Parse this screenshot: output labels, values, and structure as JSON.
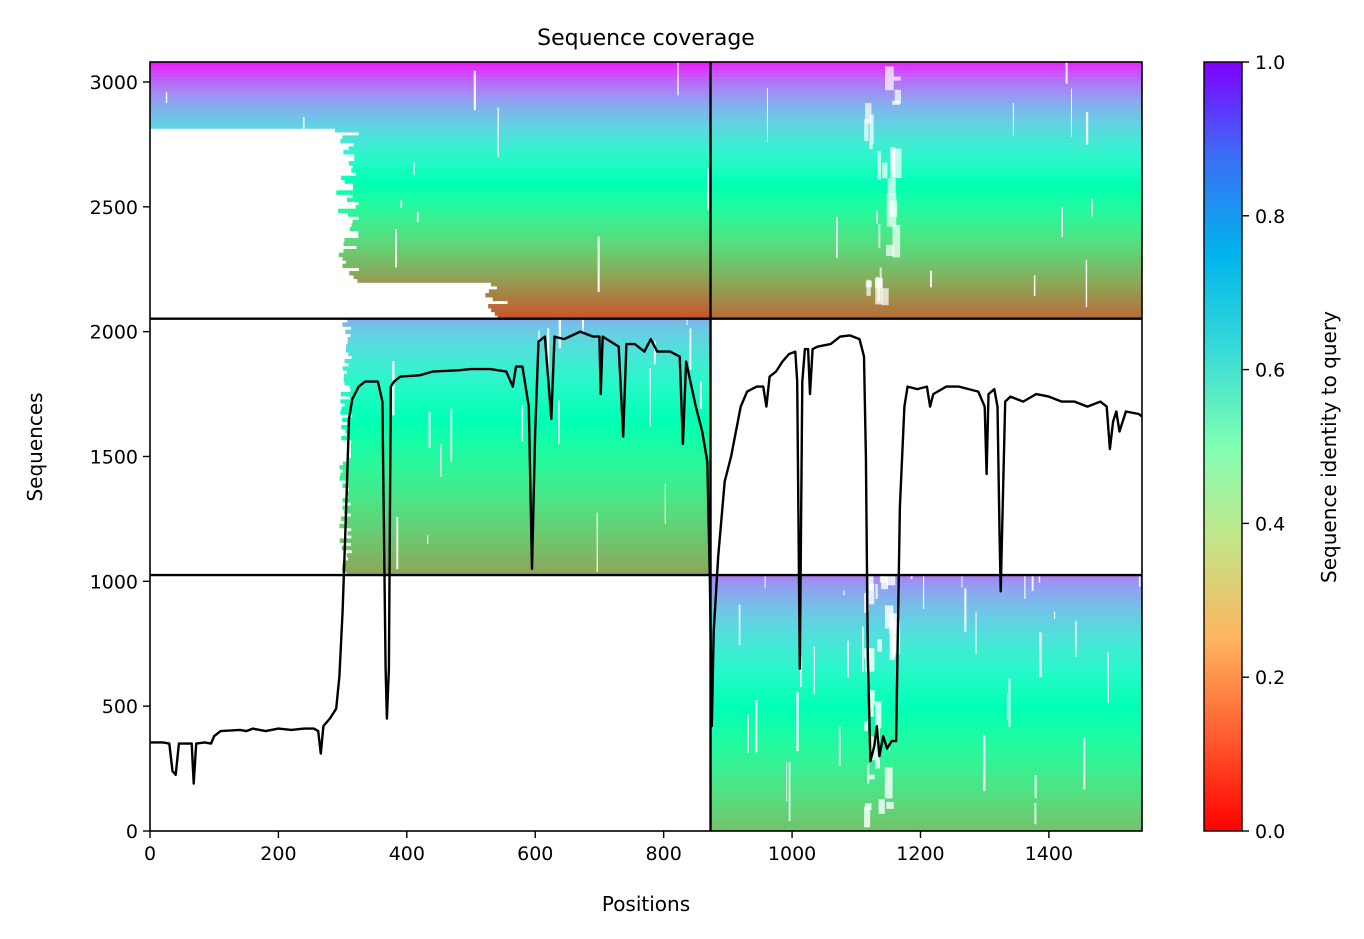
{
  "chart_data": {
    "type": "heatmap",
    "title": "Sequence coverage",
    "xlabel": "Positions",
    "ylabel": "Sequences",
    "xlim": [
      0,
      1545
    ],
    "ylim": [
      0,
      3080
    ],
    "xticks": [
      {
        "value": 0,
        "label": "0"
      },
      {
        "value": 200,
        "label": "200"
      },
      {
        "value": 400,
        "label": "400"
      },
      {
        "value": 600,
        "label": "600"
      },
      {
        "value": 800,
        "label": "800"
      },
      {
        "value": 1000,
        "label": "1000"
      },
      {
        "value": 1200,
        "label": "1200"
      },
      {
        "value": 1400,
        "label": "1400"
      }
    ],
    "yticks": [
      {
        "value": 0,
        "label": "0"
      },
      {
        "value": 500,
        "label": "500"
      },
      {
        "value": 1000,
        "label": "1000"
      },
      {
        "value": 1500,
        "label": "1500"
      },
      {
        "value": 2000,
        "label": "2000"
      },
      {
        "value": 2500,
        "label": "2500"
      },
      {
        "value": 3000,
        "label": "3000"
      }
    ],
    "colorbar": {
      "label": "Sequence identity to query",
      "range": [
        0,
        1
      ],
      "colormap": "rainbow_r",
      "ticks": [
        {
          "value": 0.0,
          "label": "0.0"
        },
        {
          "value": 0.2,
          "label": "0.2"
        },
        {
          "value": 0.4,
          "label": "0.4"
        },
        {
          "value": 0.6,
          "label": "0.6"
        },
        {
          "value": 0.8,
          "label": "0.8"
        },
        {
          "value": 1.0,
          "label": "1.0"
        }
      ]
    },
    "chain_boundaries": {
      "x_split": 873,
      "y_splits": [
        1025,
        2052
      ]
    },
    "blocks": [
      {
        "name": "top-band",
        "y_range": [
          2052,
          3080
        ],
        "segments": [
          {
            "x_range": [
              0,
              873
            ],
            "identity_top": 0.97,
            "identity_bottom": 0.1,
            "coverage_start_mid": 300
          },
          {
            "x_range": [
              873,
              1545
            ],
            "identity_top": 0.95,
            "identity_bottom": 0.13
          }
        ]
      },
      {
        "name": "middle-band",
        "y_range": [
          1025,
          2052
        ],
        "segments": [
          {
            "x_range": [
              0,
              873
            ],
            "identity_top": 0.75,
            "identity_bottom": 0.22,
            "coverage_start": 305
          }
        ]
      },
      {
        "name": "bottom-band",
        "y_range": [
          0,
          1025
        ],
        "segments": [
          {
            "x_range": [
              873,
              1545
            ],
            "identity_top": 0.83,
            "identity_bottom": 0.27
          }
        ]
      }
    ],
    "coverage_line": {
      "name": "coverage",
      "color": "#000000",
      "points": [
        [
          0,
          355
        ],
        [
          20,
          355
        ],
        [
          30,
          350
        ],
        [
          35,
          240
        ],
        [
          40,
          225
        ],
        [
          45,
          350
        ],
        [
          60,
          350
        ],
        [
          65,
          350
        ],
        [
          68,
          190
        ],
        [
          72,
          350
        ],
        [
          85,
          355
        ],
        [
          95,
          350
        ],
        [
          100,
          380
        ],
        [
          110,
          400
        ],
        [
          140,
          405
        ],
        [
          150,
          400
        ],
        [
          160,
          410
        ],
        [
          180,
          400
        ],
        [
          200,
          410
        ],
        [
          220,
          405
        ],
        [
          240,
          410
        ],
        [
          255,
          410
        ],
        [
          262,
          400
        ],
        [
          266,
          310
        ],
        [
          270,
          420
        ],
        [
          280,
          450
        ],
        [
          290,
          490
        ],
        [
          295,
          620
        ],
        [
          300,
          880
        ],
        [
          305,
          1250
        ],
        [
          310,
          1650
        ],
        [
          315,
          1730
        ],
        [
          325,
          1780
        ],
        [
          335,
          1800
        ],
        [
          355,
          1800
        ],
        [
          362,
          1720
        ],
        [
          367,
          650
        ],
        [
          369,
          450
        ],
        [
          372,
          650
        ],
        [
          375,
          1780
        ],
        [
          380,
          1800
        ],
        [
          390,
          1820
        ],
        [
          420,
          1825
        ],
        [
          440,
          1840
        ],
        [
          480,
          1845
        ],
        [
          500,
          1850
        ],
        [
          530,
          1850
        ],
        [
          555,
          1840
        ],
        [
          565,
          1780
        ],
        [
          570,
          1860
        ],
        [
          580,
          1860
        ],
        [
          590,
          1700
        ],
        [
          595,
          1050
        ],
        [
          600,
          1600
        ],
        [
          605,
          1960
        ],
        [
          615,
          1980
        ],
        [
          625,
          1650
        ],
        [
          630,
          1980
        ],
        [
          645,
          1970
        ],
        [
          670,
          2000
        ],
        [
          690,
          1980
        ],
        [
          700,
          1980
        ],
        [
          702,
          1750
        ],
        [
          705,
          1980
        ],
        [
          730,
          1940
        ],
        [
          737,
          1580
        ],
        [
          742,
          1950
        ],
        [
          755,
          1950
        ],
        [
          770,
          1920
        ],
        [
          780,
          1970
        ],
        [
          790,
          1920
        ],
        [
          810,
          1920
        ],
        [
          825,
          1900
        ],
        [
          830,
          1550
        ],
        [
          835,
          1880
        ],
        [
          850,
          1700
        ],
        [
          860,
          1600
        ],
        [
          868,
          1480
        ],
        [
          872,
          1000
        ],
        [
          875,
          420
        ],
        [
          878,
          800
        ],
        [
          885,
          1100
        ],
        [
          895,
          1400
        ],
        [
          905,
          1500
        ],
        [
          920,
          1700
        ],
        [
          930,
          1760
        ],
        [
          945,
          1780
        ],
        [
          955,
          1780
        ],
        [
          960,
          1700
        ],
        [
          965,
          1820
        ],
        [
          975,
          1840
        ],
        [
          985,
          1880
        ],
        [
          995,
          1910
        ],
        [
          1005,
          1920
        ],
        [
          1008,
          1800
        ],
        [
          1012,
          650
        ],
        [
          1016,
          1800
        ],
        [
          1020,
          1930
        ],
        [
          1025,
          1930
        ],
        [
          1028,
          1750
        ],
        [
          1032,
          1930
        ],
        [
          1040,
          1940
        ],
        [
          1060,
          1950
        ],
        [
          1075,
          1980
        ],
        [
          1090,
          1985
        ],
        [
          1105,
          1970
        ],
        [
          1112,
          1900
        ],
        [
          1115,
          1500
        ],
        [
          1118,
          700
        ],
        [
          1122,
          280
        ],
        [
          1128,
          340
        ],
        [
          1132,
          420
        ],
        [
          1136,
          300
        ],
        [
          1142,
          380
        ],
        [
          1148,
          330
        ],
        [
          1155,
          360
        ],
        [
          1162,
          360
        ],
        [
          1168,
          1300
        ],
        [
          1175,
          1700
        ],
        [
          1180,
          1780
        ],
        [
          1195,
          1770
        ],
        [
          1210,
          1780
        ],
        [
          1215,
          1700
        ],
        [
          1220,
          1750
        ],
        [
          1240,
          1780
        ],
        [
          1260,
          1780
        ],
        [
          1290,
          1760
        ],
        [
          1300,
          1700
        ],
        [
          1303,
          1430
        ],
        [
          1306,
          1750
        ],
        [
          1315,
          1770
        ],
        [
          1320,
          1700
        ],
        [
          1323,
          1200
        ],
        [
          1325,
          960
        ],
        [
          1328,
          1300
        ],
        [
          1332,
          1720
        ],
        [
          1340,
          1740
        ],
        [
          1360,
          1720
        ],
        [
          1380,
          1750
        ],
        [
          1400,
          1740
        ],
        [
          1420,
          1720
        ],
        [
          1440,
          1720
        ],
        [
          1460,
          1700
        ],
        [
          1480,
          1720
        ],
        [
          1490,
          1700
        ],
        [
          1495,
          1530
        ],
        [
          1500,
          1640
        ],
        [
          1505,
          1680
        ],
        [
          1510,
          1600
        ],
        [
          1520,
          1680
        ],
        [
          1540,
          1670
        ],
        [
          1545,
          1660
        ]
      ]
    }
  }
}
